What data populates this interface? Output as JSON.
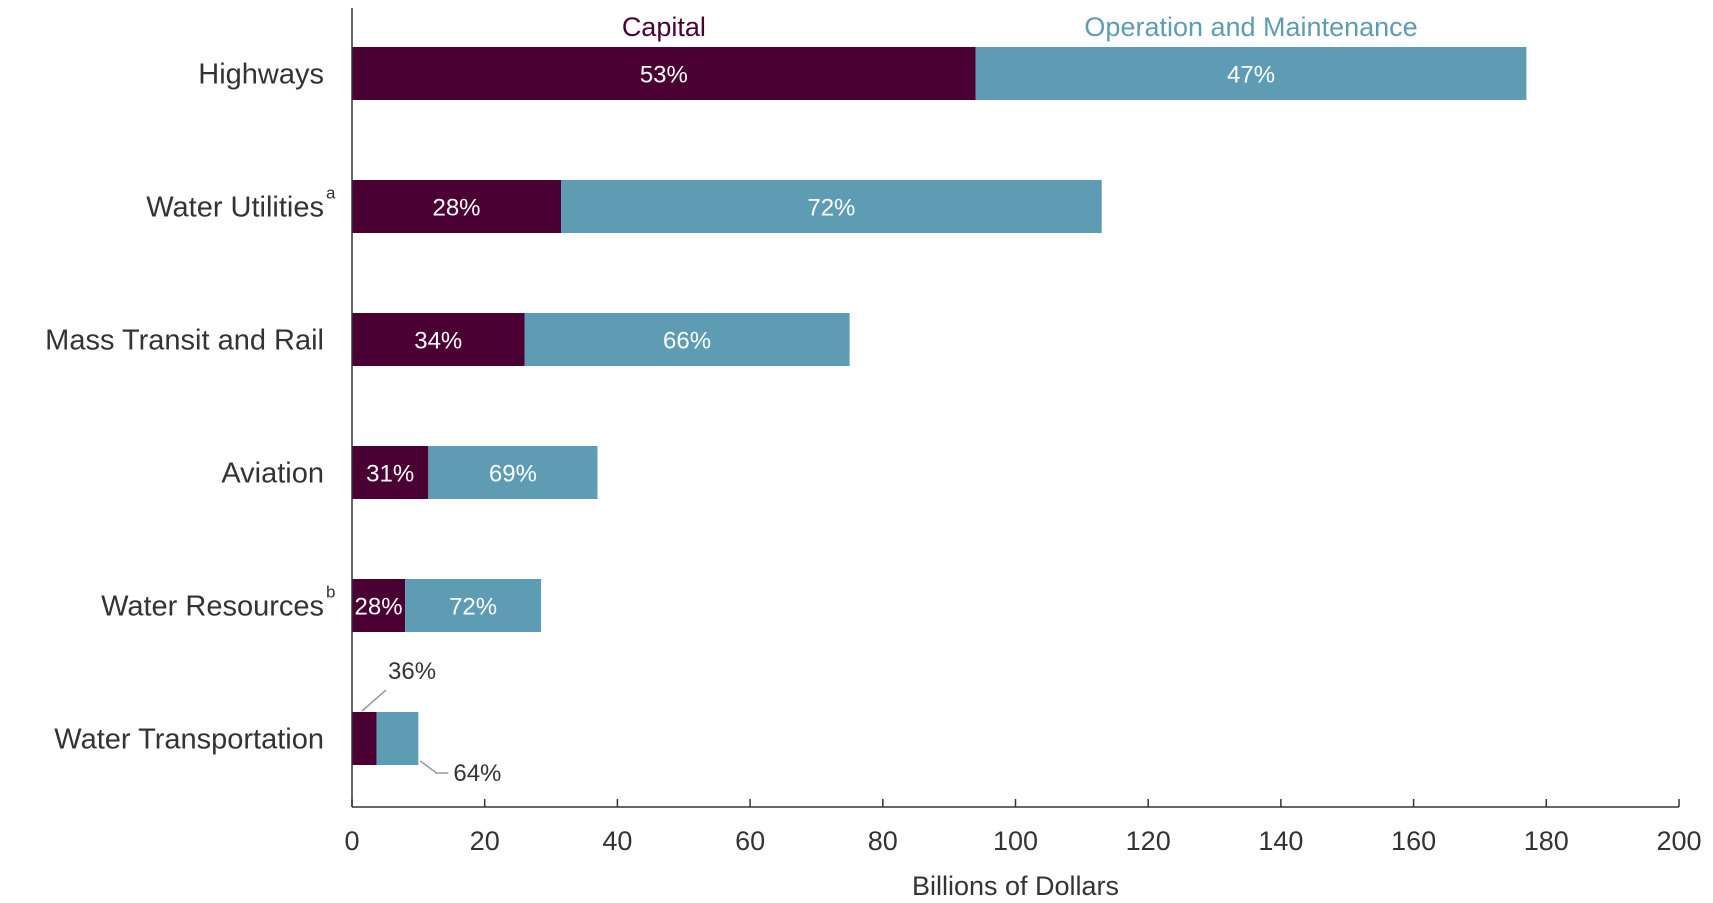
{
  "chart_data": {
    "type": "bar",
    "orientation": "horizontal",
    "stacked": true,
    "xlabel": "Billions of Dollars",
    "ylabel": "",
    "xlim": [
      0,
      200
    ],
    "x_ticks": [
      0,
      20,
      40,
      60,
      80,
      100,
      120,
      140,
      160,
      180,
      200
    ],
    "grid": false,
    "legend_placement": "top, above bars",
    "categories": [
      {
        "label": "Highways",
        "note": ""
      },
      {
        "label": "Water Utilities",
        "note": "a"
      },
      {
        "label": "Mass Transit and Rail",
        "note": ""
      },
      {
        "label": "Aviation",
        "note": ""
      },
      {
        "label": "Water Resources",
        "note": "b"
      },
      {
        "label": "Water Transportation",
        "note": ""
      }
    ],
    "series": [
      {
        "name": "Capital",
        "color": "#4a0033",
        "values": [
          94,
          31.5,
          26,
          11.5,
          8,
          3.7
        ],
        "labels": [
          "53%",
          "28%",
          "34%",
          "31%",
          "28%",
          "36%"
        ]
      },
      {
        "name": "Operation and Maintenance",
        "color": "#5e9cb4",
        "values": [
          83,
          81.5,
          49,
          25.5,
          20.5,
          6.3
        ],
        "labels": [
          "47%",
          "72%",
          "66%",
          "69%",
          "72%",
          "64%"
        ]
      }
    ]
  }
}
